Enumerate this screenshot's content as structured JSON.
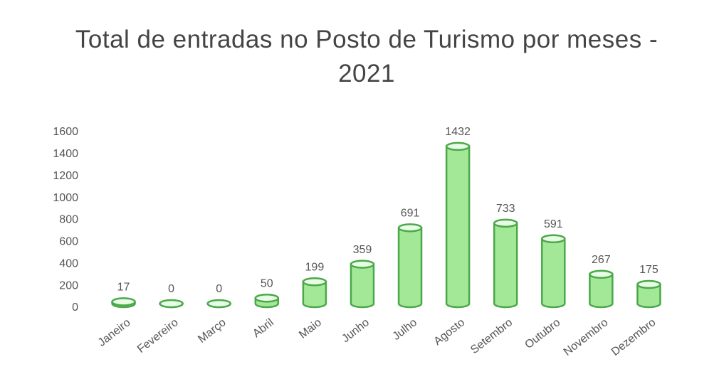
{
  "chart_data": {
    "type": "bar",
    "title": "Total de entradas no Posto de Turismo por meses - 2021",
    "categories": [
      "Janeiro",
      "Fevereiro",
      "Março",
      "Abril",
      "Maio",
      "Junho",
      "Julho",
      "Agosto",
      "Setembro",
      "Outubro",
      "Novembro",
      "Dezembro"
    ],
    "values": [
      17,
      0,
      0,
      50,
      199,
      359,
      691,
      1432,
      733,
      591,
      267,
      175
    ],
    "color": "#a3e896",
    "ylim": [
      0,
      1600
    ],
    "yticks": [
      0,
      200,
      400,
      600,
      800,
      1000,
      1200,
      1400,
      1600
    ],
    "grid": false
  }
}
